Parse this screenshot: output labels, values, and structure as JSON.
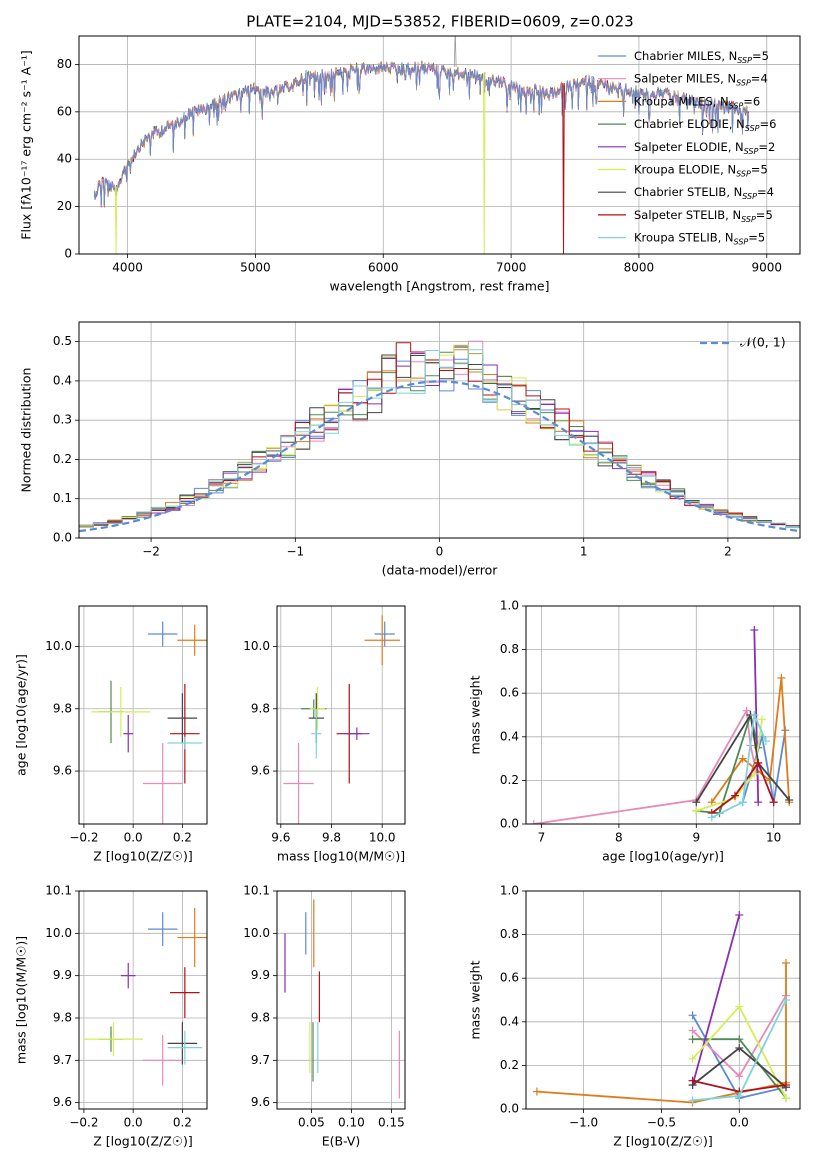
{
  "chart_data": [
    {
      "id": "spectrum",
      "type": "line",
      "title": "PLATE=2104, MJD=53852, FIBERID=0609, z=0.023",
      "xlabel": "wavelength [Angstrom, rest frame]",
      "ylabel": "Flux [fλ10⁻¹⁷ erg cm⁻² s⁻¹ A⁻¹]",
      "xlim": [
        3620,
        9260
      ],
      "ylim": [
        0,
        92
      ],
      "xticks": [
        4000,
        5000,
        6000,
        7000,
        8000,
        9000
      ],
      "yticks": [
        0,
        20,
        40,
        60,
        80
      ],
      "legend_position": "upper-right",
      "continuum": {
        "x": [
          3740,
          3800,
          3860,
          3920,
          3960,
          4000,
          4100,
          4200,
          4300,
          4400,
          4500,
          4600,
          4700,
          4800,
          4900,
          5000,
          5100,
          5200,
          5300,
          5400,
          5500,
          5600,
          5700,
          5800,
          5900,
          6000,
          6100,
          6200,
          6300,
          6400,
          6500,
          6600,
          6700,
          6800,
          6900,
          7000,
          7100,
          7200,
          7300,
          7400,
          7500,
          7600,
          7700,
          7800,
          7900,
          8000,
          8100,
          8200,
          8300,
          8400,
          8500,
          8600,
          8700,
          8800,
          8860
        ],
        "y": [
          27,
          33,
          31,
          28,
          36,
          40,
          48,
          53,
          55,
          58,
          62,
          63,
          66,
          68,
          70,
          72,
          70,
          71,
          74,
          77,
          77,
          78,
          79,
          80,
          80,
          81,
          80,
          80,
          81,
          80,
          79,
          78,
          78,
          76,
          75,
          73,
          71,
          71,
          69,
          72,
          73,
          75,
          74,
          72,
          71,
          70,
          69,
          70,
          68,
          67,
          65,
          65,
          64,
          63,
          62
        ]
      },
      "drops_to_zero": [
        {
          "x": 3910,
          "model": "Kroupa ELODIE"
        },
        {
          "x": 6790,
          "model": "Kroupa ELODIE"
        },
        {
          "x": 7410,
          "model": "Salpeter STELIB"
        }
      ],
      "series_names": [
        "Chabrier MILES, N_SSP=5",
        "Salpeter MILES, N_SSP=4",
        "Kroupa MILES, N_SSP=6",
        "Chabrier ELODIE, N_SSP=6",
        "Salpeter ELODIE, N_SSP=2",
        "Kroupa ELODIE, N_SSP=5",
        "Chabrier STELIB, N_SSP=4",
        "Salpeter STELIB, N_SSP=5",
        "Kroupa STELIB, N_SSP=5"
      ]
    },
    {
      "id": "residuals",
      "type": "histogram",
      "xlabel": "(data-model)/error",
      "ylabel": "Normed distribution",
      "xlim": [
        -2.5,
        2.5
      ],
      "ylim": [
        0,
        0.55
      ],
      "xticks": [
        -2,
        -1,
        0,
        1,
        2
      ],
      "yticks": [
        0.0,
        0.1,
        0.2,
        0.3,
        0.4,
        0.5
      ],
      "bin_width": 0.1,
      "legend": "𝒩(0, 1)",
      "legend_position": "upper-right"
    },
    {
      "id": "age-vs-Z",
      "type": "scatter",
      "xlabel": "Z [log10(Z/Z☉)]",
      "ylabel": "age  [log10(age/yr)]",
      "xlim": [
        -0.22,
        0.3
      ],
      "ylim": [
        9.43,
        10.13
      ],
      "xticks": [
        -0.2,
        0.0,
        0.2
      ],
      "yticks": [
        9.6,
        9.8,
        10.0
      ],
      "points": [
        {
          "model": "Chabrier MILES",
          "x": 0.12,
          "y": 10.04,
          "xerr": 0.06,
          "yerr": 0.04
        },
        {
          "model": "Kroupa MILES",
          "x": 0.25,
          "y": 10.02,
          "xerr": 0.07,
          "yerr": 0.05
        },
        {
          "model": "Salpeter ELODIE",
          "x": -0.02,
          "y": 9.72,
          "xerr": 0.02,
          "yerr": 0.06
        },
        {
          "model": "Chabrier ELODIE",
          "x": -0.09,
          "y": 9.79,
          "xerr": 0.05,
          "yerr": 0.1
        },
        {
          "model": "Kroupa ELODIE",
          "x": -0.05,
          "y": 9.79,
          "xerr": 0.12,
          "yerr": 0.08
        },
        {
          "model": "Chabrier STELIB",
          "x": 0.2,
          "y": 9.77,
          "xerr": 0.06,
          "yerr": 0.08
        },
        {
          "model": "Salpeter STELIB",
          "x": 0.21,
          "y": 9.72,
          "xerr": 0.06,
          "yerr": 0.16
        },
        {
          "model": "Kroupa STELIB",
          "x": 0.21,
          "y": 9.69,
          "xerr": 0.07,
          "yerr": 0.02
        },
        {
          "model": "Salpeter MILES",
          "x": 0.12,
          "y": 9.56,
          "xerr": 0.08,
          "yerr": 0.13
        }
      ]
    },
    {
      "id": "age-vs-mass",
      "type": "scatter",
      "xlabel": "mass [log10(M/M☉)]",
      "ylabel": "",
      "xlim": [
        9.585,
        10.09
      ],
      "ylim": [
        9.43,
        10.13
      ],
      "xticks": [
        9.6,
        9.8,
        10.0
      ],
      "yticks": [
        9.6,
        9.8,
        10.0
      ],
      "points": [
        {
          "model": "Chabrier MILES",
          "x": 10.01,
          "y": 10.04,
          "xerr": 0.04,
          "yerr": 0.04
        },
        {
          "model": "Kroupa MILES",
          "x": 10.0,
          "y": 10.02,
          "xerr": 0.07,
          "yerr": 0.08
        },
        {
          "model": "Chabrier ELODIE",
          "x": 9.73,
          "y": 9.8,
          "xerr": 0.05,
          "yerr": 0.03
        },
        {
          "model": "Kroupa ELODIE",
          "x": 9.745,
          "y": 9.8,
          "xerr": 0.03,
          "yerr": 0.07
        },
        {
          "model": "Chabrier STELIB",
          "x": 9.74,
          "y": 9.77,
          "xerr": 0.03,
          "yerr": 0.08
        },
        {
          "model": "Kroupa STELIB",
          "x": 9.74,
          "y": 9.72,
          "xerr": 0.02,
          "yerr": 0.08
        },
        {
          "model": "Salpeter STELIB",
          "x": 9.87,
          "y": 9.72,
          "xerr": 0.05,
          "yerr": 0.16
        },
        {
          "model": "Salpeter ELODIE",
          "x": 9.9,
          "y": 9.72,
          "xerr": 0.05,
          "yerr": 0.02
        },
        {
          "model": "Salpeter MILES",
          "x": 9.67,
          "y": 9.56,
          "xerr": 0.06,
          "yerr": 0.13
        }
      ]
    },
    {
      "id": "weight-vs-age",
      "type": "line",
      "xlabel": "age  [log10(age/yr)]",
      "ylabel": "mass weight",
      "xlim": [
        6.8,
        10.34
      ],
      "ylim": [
        0,
        1.0
      ],
      "xticks": [
        7,
        8,
        9,
        10
      ],
      "yticks": [
        0.0,
        0.2,
        0.4,
        0.6,
        0.8,
        1.0
      ],
      "series": [
        {
          "model": "Chabrier MILES",
          "x": [
            9.6,
            9.85,
            10.0,
            10.15
          ],
          "y": [
            0.1,
            0.4,
            0.1,
            0.43
          ]
        },
        {
          "model": "Salpeter MILES",
          "x": [
            6.9,
            9.0,
            9.65,
            9.7,
            9.8
          ],
          "y": [
            0.0,
            0.11,
            0.52,
            0.36,
            0.2
          ]
        },
        {
          "model": "Kroupa MILES",
          "x": [
            9.2,
            9.6,
            9.95,
            10.1,
            10.2
          ],
          "y": [
            0.1,
            0.3,
            0.2,
            0.67,
            0.1
          ]
        },
        {
          "model": "Chabrier ELODIE",
          "x": [
            9.0,
            9.3,
            9.7,
            9.8
          ],
          "y": [
            0.06,
            0.05,
            0.5,
            0.35
          ]
        },
        {
          "model": "Salpeter ELODIE",
          "x": [
            9.75,
            9.8
          ],
          "y": [
            0.89,
            0.1
          ]
        },
        {
          "model": "Kroupa ELODIE",
          "x": [
            9.0,
            9.5,
            9.75,
            9.85
          ],
          "y": [
            0.06,
            0.12,
            0.23,
            0.48
          ]
        },
        {
          "model": "Chabrier STELIB",
          "x": [
            9.0,
            9.7,
            9.8,
            10.2
          ],
          "y": [
            0.1,
            0.5,
            0.28,
            0.11
          ]
        },
        {
          "model": "Salpeter STELIB",
          "x": [
            9.2,
            9.5,
            9.8,
            10.0
          ],
          "y": [
            0.05,
            0.13,
            0.28,
            0.1
          ]
        },
        {
          "model": "Kroupa STELIB",
          "x": [
            9.2,
            9.6,
            9.75,
            9.9
          ],
          "y": [
            0.03,
            0.1,
            0.5,
            0.38
          ]
        }
      ]
    },
    {
      "id": "mass-vs-Z",
      "type": "scatter",
      "xlabel": "Z [log10(Z/Z☉)]",
      "ylabel": "mass [log10(M/M☉)]",
      "xlim": [
        -0.22,
        0.3
      ],
      "ylim": [
        9.585,
        10.1
      ],
      "xticks": [
        -0.2,
        0.0,
        0.2
      ],
      "yticks": [
        9.6,
        9.7,
        9.8,
        9.9,
        10.0,
        10.1
      ],
      "points": [
        {
          "model": "Chabrier MILES",
          "x": 0.12,
          "y": 10.01,
          "xerr": 0.06,
          "yerr": 0.04
        },
        {
          "model": "Kroupa MILES",
          "x": 0.25,
          "y": 9.99,
          "xerr": 0.07,
          "yerr": 0.07
        },
        {
          "model": "Salpeter ELODIE",
          "x": -0.02,
          "y": 9.9,
          "xerr": 0.03,
          "yerr": 0.03
        },
        {
          "model": "Salpeter STELIB",
          "x": 0.21,
          "y": 9.86,
          "xerr": 0.06,
          "yerr": 0.06
        },
        {
          "model": "Chabrier ELODIE",
          "x": -0.09,
          "y": 9.75,
          "xerr": 0.05,
          "yerr": 0.03
        },
        {
          "model": "Kroupa ELODIE",
          "x": -0.08,
          "y": 9.75,
          "xerr": 0.12,
          "yerr": 0.04
        },
        {
          "model": "Chabrier STELIB",
          "x": 0.2,
          "y": 9.74,
          "xerr": 0.06,
          "yerr": 0.05
        },
        {
          "model": "Kroupa STELIB",
          "x": 0.21,
          "y": 9.73,
          "xerr": 0.07,
          "yerr": 0.04
        },
        {
          "model": "Salpeter MILES",
          "x": 0.12,
          "y": 9.7,
          "xerr": 0.08,
          "yerr": 0.06
        }
      ]
    },
    {
      "id": "mass-vs-EBV",
      "type": "scatter",
      "xlabel": "E(B-V)",
      "ylabel": "",
      "xlim": [
        0.007,
        0.167
      ],
      "ylim": [
        9.585,
        10.1
      ],
      "xticks": [
        0.05,
        0.1,
        0.15
      ],
      "yticks": [
        9.6,
        9.7,
        9.8,
        9.9,
        10.0,
        10.1
      ],
      "points": [
        {
          "model": "Chabrier MILES",
          "x": 0.043,
          "y": 10.0,
          "xerr": 0,
          "yerr": 0.05
        },
        {
          "model": "Kroupa MILES",
          "x": 0.053,
          "y": 10.0,
          "xerr": 0,
          "yerr": 0.08
        },
        {
          "model": "Salpeter ELODIE",
          "x": 0.017,
          "y": 9.93,
          "xerr": 0,
          "yerr": 0.07
        },
        {
          "model": "Salpeter STELIB",
          "x": 0.06,
          "y": 9.85,
          "xerr": 0,
          "yerr": 0.06
        },
        {
          "model": "Kroupa ELODIE",
          "x": 0.048,
          "y": 9.73,
          "xerr": 0,
          "yerr": 0.06
        },
        {
          "model": "Chabrier ELODIE",
          "x": 0.052,
          "y": 9.72,
          "xerr": 0,
          "yerr": 0.07
        },
        {
          "model": "Kroupa STELIB",
          "x": 0.058,
          "y": 9.73,
          "xerr": 0,
          "yerr": 0.06
        },
        {
          "model": "Salpeter MILES",
          "x": 0.16,
          "y": 9.69,
          "xerr": 0,
          "yerr": 0.08
        }
      ]
    },
    {
      "id": "weight-vs-Z",
      "type": "line",
      "xlabel": "Z [log10(Z/Z☉)]",
      "ylabel": "mass weight",
      "xlim": [
        -1.37,
        0.39
      ],
      "ylim": [
        0,
        1.0
      ],
      "xticks": [
        -1.0,
        -0.5,
        0.0
      ],
      "yticks": [
        0.0,
        0.2,
        0.4,
        0.6,
        0.8,
        1.0
      ],
      "series": [
        {
          "model": "Chabrier MILES",
          "x": [
            -0.3,
            0.0,
            0.3
          ],
          "y": [
            0.43,
            0.05,
            0.1
          ]
        },
        {
          "model": "Salpeter MILES",
          "x": [
            -0.3,
            0.0,
            0.3
          ],
          "y": [
            0.36,
            0.15,
            0.52
          ]
        },
        {
          "model": "Kroupa MILES",
          "x": [
            -1.3,
            -0.3,
            0.3,
            0.3
          ],
          "y": [
            0.08,
            0.03,
            0.12,
            0.67
          ]
        },
        {
          "model": "Chabrier ELODIE",
          "x": [
            -0.3,
            0.0,
            0.3
          ],
          "y": [
            0.32,
            0.32,
            0.05
          ]
        },
        {
          "model": "Salpeter ELODIE",
          "x": [
            -0.3,
            0.0
          ],
          "y": [
            0.11,
            0.89
          ]
        },
        {
          "model": "Kroupa ELODIE",
          "x": [
            -0.3,
            0.0,
            0.3
          ],
          "y": [
            0.23,
            0.47,
            0.05
          ]
        },
        {
          "model": "Chabrier STELIB",
          "x": [
            -0.3,
            0.0,
            0.3
          ],
          "y": [
            0.11,
            0.28,
            0.1
          ]
        },
        {
          "model": "Salpeter STELIB",
          "x": [
            -0.3,
            0.0,
            0.3
          ],
          "y": [
            0.13,
            0.08,
            0.11
          ]
        },
        {
          "model": "Kroupa STELIB",
          "x": [
            -0.3,
            0.0,
            0.3
          ],
          "y": [
            0.04,
            0.06,
            0.5
          ]
        }
      ]
    }
  ],
  "models": [
    {
      "name": "Chabrier MILES",
      "nssp": "5",
      "color": "#5b8bd6"
    },
    {
      "name": "Salpeter MILES",
      "nssp": "4",
      "color": "#e889b8"
    },
    {
      "name": "Kroupa MILES",
      "nssp": "6",
      "color": "#e07b1a"
    },
    {
      "name": "Chabrier ELODIE",
      "nssp": "6",
      "color": "#4e8a55"
    },
    {
      "name": "Salpeter ELODIE",
      "nssp": "2",
      "color": "#8a2fb0"
    },
    {
      "name": "Kroupa ELODIE",
      "nssp": "5",
      "color": "#d4ee58"
    },
    {
      "name": "Chabrier STELIB",
      "nssp": "4",
      "color": "#444444"
    },
    {
      "name": "Salpeter STELIB",
      "nssp": "5",
      "color": "#b0101a"
    },
    {
      "name": "Kroupa STELIB",
      "nssp": "5",
      "color": "#7fd3dc"
    }
  ],
  "gaussian_color": "#5b8bd6",
  "legend_ssp_label": "SSP"
}
